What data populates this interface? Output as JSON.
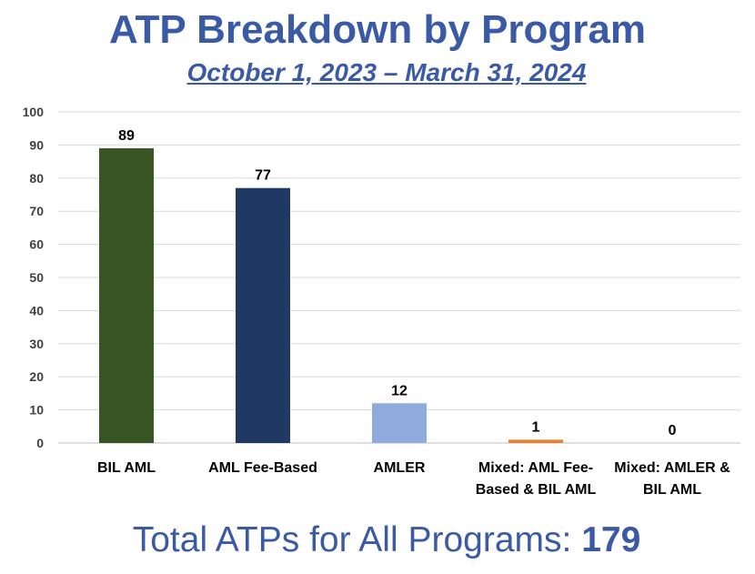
{
  "header": {
    "title": "ATP Breakdown by Program",
    "subtitle": "October 1, 2023 – March 31, 2024"
  },
  "footer": {
    "label": "Total ATPs for All Programs: ",
    "value": "179"
  },
  "chart_data": {
    "type": "bar",
    "categories": [
      [
        "BIL AML"
      ],
      [
        "AML Fee-Based"
      ],
      [
        "AMLER"
      ],
      [
        "Mixed: AML Fee-",
        "Based & BIL AML"
      ],
      [
        "Mixed: AMLER &",
        "BIL AML"
      ]
    ],
    "values": [
      89,
      77,
      12,
      1,
      0
    ],
    "bar_colors": [
      "#375623",
      "#203864",
      "#8faadc",
      "#ed7d31",
      "#a5a5a5"
    ],
    "ylim": [
      0,
      100
    ],
    "yticks": [
      0,
      10,
      20,
      30,
      40,
      50,
      60,
      70,
      80,
      90,
      100
    ],
    "grid": true,
    "data_labels": true
  }
}
